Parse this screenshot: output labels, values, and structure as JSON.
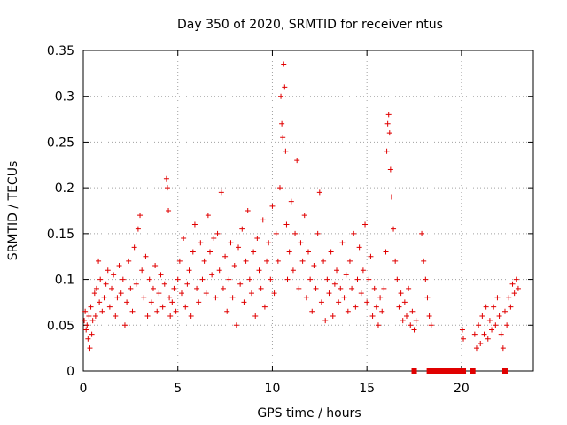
{
  "chart_data": {
    "type": "scatter",
    "title": "Day 350 of 2020, SRMTID for receiver ntus",
    "xlabel": "GPS time / hours",
    "ylabel": "SRMTID / TECUs",
    "xlim": [
      0,
      23.8
    ],
    "ylim": [
      0,
      0.35
    ],
    "x_ticks": [
      0,
      5,
      10,
      15,
      20
    ],
    "x_tick_labels": [
      "0",
      "5",
      "10",
      "15",
      "20"
    ],
    "y_ticks": [
      0,
      0.05,
      0.1,
      0.15,
      0.2,
      0.25,
      0.3,
      0.35
    ],
    "y_tick_labels": [
      "0",
      "0.05",
      "0.1",
      "0.15",
      "0.2",
      "0.25",
      "0.3",
      "0.35"
    ],
    "grid": true,
    "marker": "plus",
    "color": "#e00000",
    "series": [
      {
        "values": [
          [
            0.05,
            0.055
          ],
          [
            0.1,
            0.065
          ],
          [
            0.15,
            0.045
          ],
          [
            0.2,
            0.05
          ],
          [
            0.25,
            0.035
          ],
          [
            0.3,
            0.06
          ],
          [
            0.35,
            0.025
          ],
          [
            0.4,
            0.07
          ],
          [
            0.45,
            0.04
          ],
          [
            0.5,
            0.055
          ],
          [
            0.6,
            0.085
          ],
          [
            0.65,
            0.06
          ],
          [
            0.7,
            0.09
          ],
          [
            0.8,
            0.12
          ],
          [
            0.85,
            0.075
          ],
          [
            0.9,
            0.1
          ],
          [
            1.0,
            0.065
          ],
          [
            1.1,
            0.08
          ],
          [
            1.2,
            0.095
          ],
          [
            1.3,
            0.11
          ],
          [
            1.4,
            0.07
          ],
          [
            1.5,
            0.09
          ],
          [
            1.6,
            0.105
          ],
          [
            1.7,
            0.06
          ],
          [
            1.8,
            0.08
          ],
          [
            1.9,
            0.115
          ],
          [
            2.0,
            0.085
          ],
          [
            2.1,
            0.1
          ],
          [
            2.2,
            0.05
          ],
          [
            2.3,
            0.075
          ],
          [
            2.4,
            0.12
          ],
          [
            2.5,
            0.09
          ],
          [
            2.6,
            0.065
          ],
          [
            2.7,
            0.135
          ],
          [
            2.8,
            0.095
          ],
          [
            2.9,
            0.155
          ],
          [
            3.0,
            0.17
          ],
          [
            3.1,
            0.11
          ],
          [
            3.2,
            0.08
          ],
          [
            3.3,
            0.125
          ],
          [
            3.4,
            0.06
          ],
          [
            3.5,
            0.1
          ],
          [
            3.6,
            0.075
          ],
          [
            3.7,
            0.09
          ],
          [
            3.8,
            0.115
          ],
          [
            3.9,
            0.065
          ],
          [
            4.0,
            0.085
          ],
          [
            4.1,
            0.105
          ],
          [
            4.2,
            0.07
          ],
          [
            4.3,
            0.095
          ],
          [
            4.4,
            0.21
          ],
          [
            4.45,
            0.2
          ],
          [
            4.5,
            0.175
          ],
          [
            4.55,
            0.08
          ],
          [
            4.6,
            0.06
          ],
          [
            4.7,
            0.075
          ],
          [
            4.8,
            0.09
          ],
          [
            4.9,
            0.065
          ],
          [
            5.0,
            0.1
          ],
          [
            5.1,
            0.12
          ],
          [
            5.2,
            0.085
          ],
          [
            5.3,
            0.145
          ],
          [
            5.4,
            0.07
          ],
          [
            5.5,
            0.095
          ],
          [
            5.6,
            0.11
          ],
          [
            5.7,
            0.06
          ],
          [
            5.8,
            0.13
          ],
          [
            5.9,
            0.16
          ],
          [
            6.0,
            0.09
          ],
          [
            6.1,
            0.075
          ],
          [
            6.2,
            0.14
          ],
          [
            6.3,
            0.1
          ],
          [
            6.4,
            0.12
          ],
          [
            6.5,
            0.085
          ],
          [
            6.6,
            0.17
          ],
          [
            6.7,
            0.13
          ],
          [
            6.8,
            0.105
          ],
          [
            6.9,
            0.145
          ],
          [
            7.0,
            0.08
          ],
          [
            7.1,
            0.15
          ],
          [
            7.2,
            0.11
          ],
          [
            7.3,
            0.195
          ],
          [
            7.4,
            0.09
          ],
          [
            7.5,
            0.125
          ],
          [
            7.6,
            0.065
          ],
          [
            7.7,
            0.1
          ],
          [
            7.8,
            0.14
          ],
          [
            7.9,
            0.08
          ],
          [
            8.0,
            0.115
          ],
          [
            8.1,
            0.05
          ],
          [
            8.2,
            0.135
          ],
          [
            8.3,
            0.095
          ],
          [
            8.4,
            0.155
          ],
          [
            8.5,
            0.075
          ],
          [
            8.6,
            0.12
          ],
          [
            8.7,
            0.175
          ],
          [
            8.8,
            0.1
          ],
          [
            8.9,
            0.085
          ],
          [
            9.0,
            0.13
          ],
          [
            9.1,
            0.06
          ],
          [
            9.2,
            0.145
          ],
          [
            9.3,
            0.11
          ],
          [
            9.4,
            0.09
          ],
          [
            9.5,
            0.165
          ],
          [
            9.6,
            0.07
          ],
          [
            9.7,
            0.12
          ],
          [
            9.8,
            0.14
          ],
          [
            9.9,
            0.1
          ],
          [
            10.0,
            0.18
          ],
          [
            10.1,
            0.085
          ],
          [
            10.2,
            0.15
          ],
          [
            10.3,
            0.12
          ],
          [
            10.4,
            0.2
          ],
          [
            10.45,
            0.3
          ],
          [
            10.5,
            0.27
          ],
          [
            10.55,
            0.255
          ],
          [
            10.6,
            0.335
          ],
          [
            10.65,
            0.31
          ],
          [
            10.7,
            0.24
          ],
          [
            10.75,
            0.16
          ],
          [
            10.8,
            0.1
          ],
          [
            10.9,
            0.13
          ],
          [
            11.0,
            0.185
          ],
          [
            11.1,
            0.11
          ],
          [
            11.2,
            0.15
          ],
          [
            11.3,
            0.23
          ],
          [
            11.4,
            0.09
          ],
          [
            11.5,
            0.14
          ],
          [
            11.6,
            0.12
          ],
          [
            11.7,
            0.17
          ],
          [
            11.8,
            0.08
          ],
          [
            11.9,
            0.13
          ],
          [
            12.0,
            0.1
          ],
          [
            12.1,
            0.065
          ],
          [
            12.2,
            0.115
          ],
          [
            12.3,
            0.09
          ],
          [
            12.4,
            0.15
          ],
          [
            12.5,
            0.195
          ],
          [
            12.6,
            0.075
          ],
          [
            12.7,
            0.12
          ],
          [
            12.8,
            0.055
          ],
          [
            12.9,
            0.1
          ],
          [
            13.0,
            0.085
          ],
          [
            13.1,
            0.13
          ],
          [
            13.2,
            0.06
          ],
          [
            13.3,
            0.095
          ],
          [
            13.4,
            0.11
          ],
          [
            13.5,
            0.075
          ],
          [
            13.6,
            0.09
          ],
          [
            13.7,
            0.14
          ],
          [
            13.8,
            0.08
          ],
          [
            13.9,
            0.105
          ],
          [
            14.0,
            0.065
          ],
          [
            14.1,
            0.12
          ],
          [
            14.2,
            0.09
          ],
          [
            14.3,
            0.15
          ],
          [
            14.4,
            0.07
          ],
          [
            14.5,
            0.1
          ],
          [
            14.6,
            0.135
          ],
          [
            14.7,
            0.085
          ],
          [
            14.8,
            0.11
          ],
          [
            14.9,
            0.16
          ],
          [
            15.0,
            0.075
          ],
          [
            15.1,
            0.1
          ],
          [
            15.2,
            0.125
          ],
          [
            15.3,
            0.06
          ],
          [
            15.4,
            0.09
          ],
          [
            15.5,
            0.07
          ],
          [
            15.6,
            0.05
          ],
          [
            15.7,
            0.08
          ],
          [
            15.8,
            0.065
          ],
          [
            15.9,
            0.09
          ],
          [
            16.0,
            0.13
          ],
          [
            16.05,
            0.24
          ],
          [
            16.1,
            0.27
          ],
          [
            16.15,
            0.28
          ],
          [
            16.2,
            0.26
          ],
          [
            16.25,
            0.22
          ],
          [
            16.3,
            0.19
          ],
          [
            16.4,
            0.155
          ],
          [
            16.5,
            0.12
          ],
          [
            16.6,
            0.1
          ],
          [
            16.7,
            0.07
          ],
          [
            16.8,
            0.085
          ],
          [
            16.9,
            0.055
          ],
          [
            17.0,
            0.075
          ],
          [
            17.1,
            0.06
          ],
          [
            17.2,
            0.09
          ],
          [
            17.3,
            0.05
          ],
          [
            17.4,
            0.065
          ],
          [
            17.5,
            0.045
          ],
          [
            17.6,
            0.055
          ],
          [
            17.9,
            0.15
          ],
          [
            18.0,
            0.12
          ],
          [
            18.1,
            0.1
          ],
          [
            18.2,
            0.08
          ],
          [
            18.3,
            0.06
          ],
          [
            18.4,
            0.05
          ],
          [
            20.05,
            0.045
          ],
          [
            20.1,
            0.035
          ],
          [
            20.7,
            0.04
          ],
          [
            20.8,
            0.025
          ],
          [
            20.9,
            0.05
          ],
          [
            21.0,
            0.03
          ],
          [
            21.1,
            0.06
          ],
          [
            21.2,
            0.04
          ],
          [
            21.3,
            0.07
          ],
          [
            21.4,
            0.035
          ],
          [
            21.5,
            0.055
          ],
          [
            21.6,
            0.045
          ],
          [
            21.7,
            0.07
          ],
          [
            21.8,
            0.05
          ],
          [
            21.9,
            0.08
          ],
          [
            22.0,
            0.06
          ],
          [
            22.1,
            0.04
          ],
          [
            22.2,
            0.025
          ],
          [
            22.3,
            0.065
          ],
          [
            22.4,
            0.05
          ],
          [
            22.5,
            0.08
          ],
          [
            22.6,
            0.07
          ],
          [
            22.7,
            0.095
          ],
          [
            22.8,
            0.085
          ],
          [
            22.9,
            0.1
          ],
          [
            23.0,
            0.09
          ]
        ]
      }
    ],
    "zero_markers_x": [
      17.5,
      18.3,
      18.5,
      18.7,
      18.9,
      19.1,
      19.3,
      19.5,
      19.7,
      19.9,
      20.1,
      20.6,
      22.3
    ]
  }
}
